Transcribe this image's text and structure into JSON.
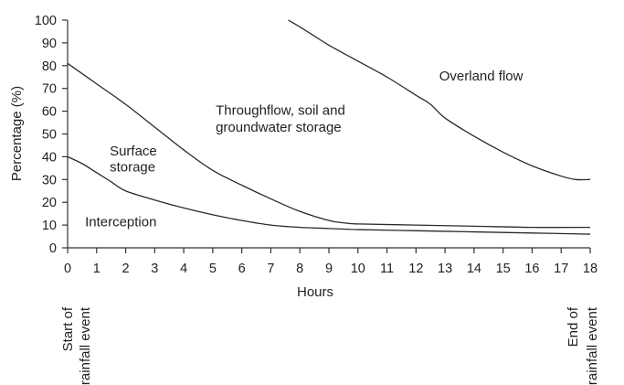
{
  "chart_data": {
    "type": "line",
    "xlabel": "Hours",
    "ylabel": "Percentage (%)",
    "xlim": [
      0,
      18
    ],
    "ylim": [
      0,
      100
    ],
    "x_ticks": [
      0,
      1,
      2,
      3,
      4,
      5,
      6,
      7,
      8,
      9,
      10,
      11,
      12,
      13,
      14,
      15,
      16,
      17,
      18
    ],
    "y_ticks": [
      0,
      10,
      20,
      30,
      40,
      50,
      60,
      70,
      80,
      90,
      100
    ],
    "grid": false,
    "series": [
      {
        "points": [
          [
            0,
            40
          ],
          [
            0.5,
            37
          ],
          [
            1,
            33
          ],
          [
            1.5,
            29
          ],
          [
            2,
            25
          ],
          [
            3,
            21
          ],
          [
            4,
            17.5
          ],
          [
            5,
            14.5
          ],
          [
            6,
            12
          ],
          [
            7,
            10
          ],
          [
            8,
            9
          ],
          [
            9,
            8.5
          ],
          [
            10,
            8
          ],
          [
            12,
            7.5
          ],
          [
            14,
            7
          ],
          [
            16,
            6.5
          ],
          [
            18,
            6
          ]
        ]
      },
      {
        "points": [
          [
            0,
            81
          ],
          [
            1,
            72
          ],
          [
            2,
            63
          ],
          [
            3,
            53
          ],
          [
            4,
            43
          ],
          [
            5,
            34
          ],
          [
            6,
            27.5
          ],
          [
            7,
            21.5
          ],
          [
            8,
            16
          ],
          [
            9,
            12
          ],
          [
            9.5,
            11
          ],
          [
            10,
            10.5
          ],
          [
            12,
            10
          ],
          [
            14,
            9.5
          ],
          [
            16,
            9
          ],
          [
            18,
            9
          ]
        ]
      },
      {
        "points": [
          [
            7.6,
            100
          ],
          [
            8,
            97
          ],
          [
            8.5,
            93
          ],
          [
            9,
            89
          ],
          [
            10,
            82
          ],
          [
            11,
            75
          ],
          [
            12,
            67
          ],
          [
            12.5,
            63
          ],
          [
            13,
            57
          ],
          [
            14,
            49
          ],
          [
            15,
            42
          ],
          [
            16,
            36
          ],
          [
            17,
            31.5
          ],
          [
            17.5,
            30
          ],
          [
            18,
            30
          ]
        ]
      }
    ],
    "region_labels": [
      {
        "text": "Interception",
        "x": 0.6,
        "y": 9.5
      },
      {
        "text": "Surface",
        "x": 1.45,
        "y": 40.5
      },
      {
        "text": "storage",
        "x": 1.45,
        "y": 33.5
      },
      {
        "text": "Throughflow, soil and",
        "x": 5.1,
        "y": 58.5
      },
      {
        "text": "groundwater storage",
        "x": 5.1,
        "y": 51
      },
      {
        "text": "Overland flow",
        "x": 12.8,
        "y": 73.5
      }
    ],
    "annotations": {
      "start": [
        "Start of",
        "rainfall event"
      ],
      "end": [
        "End of",
        "rainfall event"
      ]
    }
  }
}
